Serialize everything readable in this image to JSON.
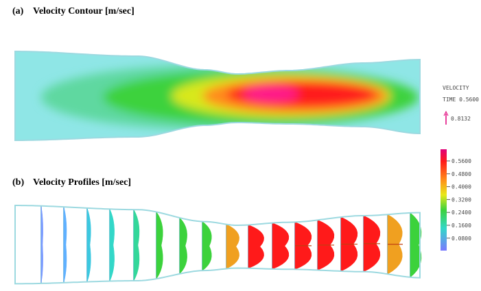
{
  "panel_a": {
    "label": "(a)",
    "title": "Velocity Contour [m/sec]"
  },
  "panel_b": {
    "label": "(b)",
    "title": "Velocity Profiles [m/sec]"
  },
  "legend": {
    "quantity": "VELOCITY",
    "time": "TIME 0.5600",
    "vector_scale": "0.8132"
  },
  "colorbar": {
    "ticks": [
      "0.5600",
      "0.4800",
      "0.4000",
      "0.3200",
      "0.2400",
      "0.1600",
      "0.0800"
    ]
  }
}
